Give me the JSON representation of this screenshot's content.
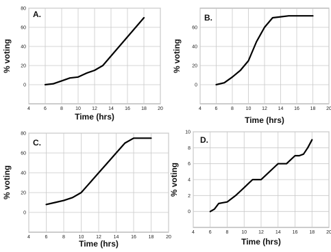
{
  "chart_data": [
    {
      "type": "line",
      "panel_label": "A.",
      "xlabel": "Time (hrs)",
      "ylabel": "% voting",
      "xlim": [
        4,
        20
      ],
      "ylim": [
        -20,
        80
      ],
      "xticks": [
        "4",
        "6",
        "8",
        "10",
        "12",
        "14",
        "16",
        "18",
        "20"
      ],
      "yticks": [
        "0",
        "20",
        "40",
        "60",
        "80"
      ],
      "grid": true,
      "x": [
        6,
        7,
        8,
        9,
        10,
        11,
        12,
        13,
        14,
        15,
        16,
        17,
        18
      ],
      "values": [
        0,
        1,
        4,
        7,
        8,
        12,
        15,
        20,
        30,
        40,
        50,
        60,
        70
      ]
    },
    {
      "type": "line",
      "panel_label": "B.",
      "xlabel": "Time (hrs)",
      "ylabel": "% voting",
      "xlim": [
        4,
        20
      ],
      "ylim": [
        -20,
        80
      ],
      "xticks": [
        "4",
        "6",
        "8",
        "10",
        "12",
        "14",
        "16",
        "18",
        "20"
      ],
      "yticks": [
        "0",
        "20",
        "40",
        "60"
      ],
      "grid": true,
      "x": [
        6,
        7,
        8,
        9,
        10,
        11,
        12,
        13,
        14,
        15,
        16,
        17,
        18
      ],
      "values": [
        0,
        2,
        8,
        15,
        25,
        45,
        60,
        70,
        71,
        72,
        72,
        72,
        72
      ]
    },
    {
      "type": "line",
      "panel_label": "C.",
      "xlabel": "Time (hrs)",
      "ylabel": "% voting",
      "xlim": [
        4,
        20
      ],
      "ylim": [
        -20,
        80
      ],
      "xticks": [
        "4",
        "6",
        "8",
        "10",
        "12",
        "14",
        "16",
        "18",
        "20"
      ],
      "yticks": [
        "0",
        "20",
        "40",
        "60",
        "80"
      ],
      "grid": true,
      "x": [
        6,
        7,
        8,
        9,
        10,
        11,
        12,
        13,
        14,
        15,
        16,
        17,
        18
      ],
      "values": [
        8,
        10,
        12,
        15,
        20,
        30,
        40,
        50,
        60,
        70,
        75,
        75,
        75
      ]
    },
    {
      "type": "line",
      "panel_label": "D.",
      "xlabel": "Time (hrs)",
      "ylabel": "% voting",
      "xlim": [
        4,
        20
      ],
      "ylim": [
        -2,
        10
      ],
      "xticks": [
        "4",
        "6",
        "8",
        "10",
        "12",
        "14",
        "16",
        "18",
        "20"
      ],
      "yticks": [
        "0",
        "2",
        "4",
        "6",
        "8",
        "10"
      ],
      "grid": true,
      "x": [
        6,
        6.5,
        7,
        7.5,
        8,
        8.5,
        9,
        9.5,
        10,
        10.5,
        11,
        11.5,
        12,
        12.5,
        13,
        13.5,
        14,
        14.5,
        15,
        15.5,
        16,
        16.5,
        17,
        17.5,
        18
      ],
      "values": [
        0,
        0.3,
        1,
        1.1,
        1.2,
        1.6,
        2,
        2.5,
        3,
        3.5,
        4,
        4,
        4,
        4.5,
        5,
        5.5,
        6,
        6,
        6,
        6.5,
        7,
        7,
        7.2,
        8,
        9
      ]
    }
  ]
}
